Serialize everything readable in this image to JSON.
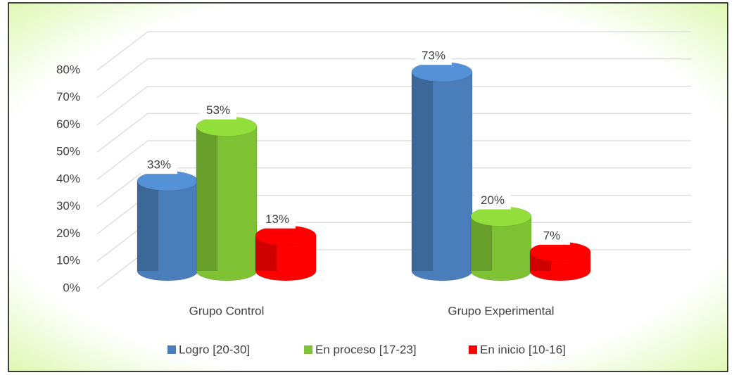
{
  "chart_data": {
    "type": "bar",
    "categories": [
      "Grupo Control",
      "Grupo Experimental"
    ],
    "series": [
      {
        "name": "Logro [20-30]",
        "color": "#4a7ebb",
        "values": [
          33,
          73
        ],
        "value_labels": [
          "33%",
          "73%"
        ]
      },
      {
        "name": "En proceso [17-23]",
        "color": "#7fc234",
        "values": [
          53,
          20
        ],
        "value_labels": [
          "53%",
          "20%"
        ]
      },
      {
        "name": "En inicio [10-16]",
        "color": "#ff0000",
        "values": [
          13,
          7
        ],
        "value_labels": [
          "13%",
          "7%"
        ]
      }
    ],
    "ylim": [
      0,
      80
    ],
    "yticks": [
      {
        "value": 0,
        "label": "0%"
      },
      {
        "value": 10,
        "label": "10%"
      },
      {
        "value": 20,
        "label": "20%"
      },
      {
        "value": 30,
        "label": "30%"
      },
      {
        "value": 40,
        "label": "40%"
      },
      {
        "value": 50,
        "label": "50%"
      },
      {
        "value": 60,
        "label": "60%"
      },
      {
        "value": 70,
        "label": "70%"
      },
      {
        "value": 80,
        "label": "80%"
      }
    ],
    "grid": true,
    "legend": "bottom"
  }
}
